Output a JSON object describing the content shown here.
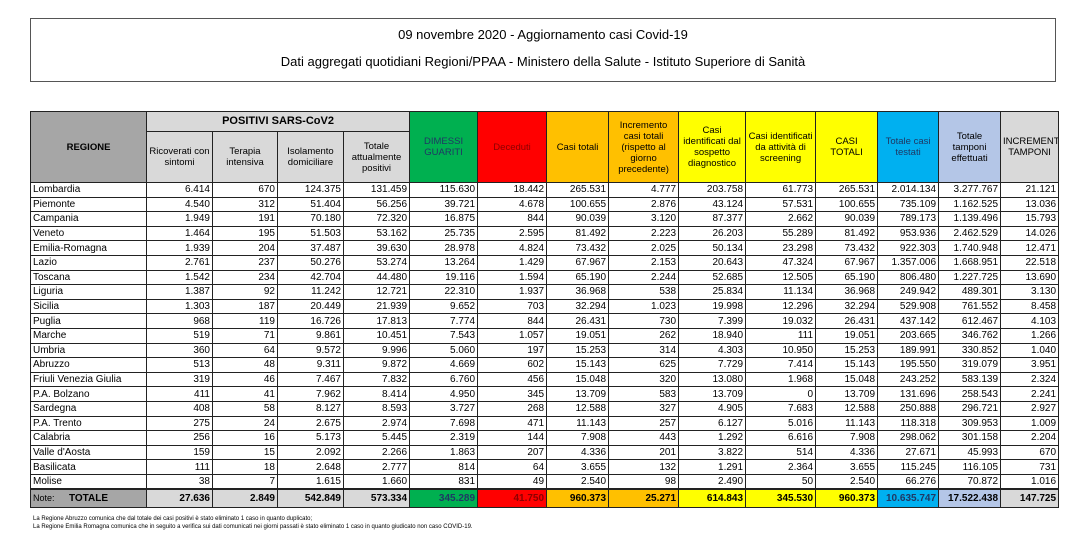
{
  "title": "09 novembre 2020 - Aggiornamento casi Covid-19",
  "subtitle": "Dati aggregati quotidiani Regioni/PPAA - Ministero della Salute - Istituto Superiore di Sanità",
  "headers": {
    "regione": "REGIONE",
    "positivi": "POSITIVI SARS-CoV2",
    "cols": [
      "Ricoverati con sintomi",
      "Terapia intensiva",
      "Isolamento domiciliare",
      "Totale attualmente positivi",
      "DIMESSI GUARITI",
      "Deceduti",
      "Casi totali",
      "Incremento casi totali (rispetto al giorno precedente)",
      "Casi identificati dal sospetto diagnostico",
      "Casi identificati da attività di screening",
      "CASI TOTALI",
      "Totale casi testati",
      "Totale tamponi effettuati",
      "INCREMENTO TAMPONI"
    ]
  },
  "colors": {
    "green": "#00b050",
    "red": "#ff0000",
    "orange": "#ffc000",
    "yellow": "#ffff00",
    "blue": "#00b0f0",
    "lightblue": "#b4c6e7",
    "gray": "#d9d9d9"
  },
  "rows": [
    [
      "Lombardia",
      "6.414",
      "670",
      "124.375",
      "131.459",
      "115.630",
      "18.442",
      "265.531",
      "4.777",
      "203.758",
      "61.773",
      "265.531",
      "2.014.134",
      "3.277.767",
      "21.121"
    ],
    [
      "Piemonte",
      "4.540",
      "312",
      "51.404",
      "56.256",
      "39.721",
      "4.678",
      "100.655",
      "2.876",
      "43.124",
      "57.531",
      "100.655",
      "735.109",
      "1.162.525",
      "13.036"
    ],
    [
      "Campania",
      "1.949",
      "191",
      "70.180",
      "72.320",
      "16.875",
      "844",
      "90.039",
      "3.120",
      "87.377",
      "2.662",
      "90.039",
      "789.173",
      "1.139.496",
      "15.793"
    ],
    [
      "Veneto",
      "1.464",
      "195",
      "51.503",
      "53.162",
      "25.735",
      "2.595",
      "81.492",
      "2.223",
      "26.203",
      "55.289",
      "81.492",
      "953.936",
      "2.462.529",
      "14.026"
    ],
    [
      "Emilia-Romagna",
      "1.939",
      "204",
      "37.487",
      "39.630",
      "28.978",
      "4.824",
      "73.432",
      "2.025",
      "50.134",
      "23.298",
      "73.432",
      "922.303",
      "1.740.948",
      "12.471"
    ],
    [
      "Lazio",
      "2.761",
      "237",
      "50.276",
      "53.274",
      "13.264",
      "1.429",
      "67.967",
      "2.153",
      "20.643",
      "47.324",
      "67.967",
      "1.357.006",
      "1.668.951",
      "22.518"
    ],
    [
      "Toscana",
      "1.542",
      "234",
      "42.704",
      "44.480",
      "19.116",
      "1.594",
      "65.190",
      "2.244",
      "52.685",
      "12.505",
      "65.190",
      "806.480",
      "1.227.725",
      "13.690"
    ],
    [
      "Liguria",
      "1.387",
      "92",
      "11.242",
      "12.721",
      "22.310",
      "1.937",
      "36.968",
      "538",
      "25.834",
      "11.134",
      "36.968",
      "249.942",
      "489.301",
      "3.130"
    ],
    [
      "Sicilia",
      "1.303",
      "187",
      "20.449",
      "21.939",
      "9.652",
      "703",
      "32.294",
      "1.023",
      "19.998",
      "12.296",
      "32.294",
      "529.908",
      "761.552",
      "8.458"
    ],
    [
      "Puglia",
      "968",
      "119",
      "16.726",
      "17.813",
      "7.774",
      "844",
      "26.431",
      "730",
      "7.399",
      "19.032",
      "26.431",
      "437.142",
      "612.467",
      "4.103"
    ],
    [
      "Marche",
      "519",
      "71",
      "9.861",
      "10.451",
      "7.543",
      "1.057",
      "19.051",
      "262",
      "18.940",
      "111",
      "19.051",
      "203.665",
      "346.762",
      "1.266"
    ],
    [
      "Umbria",
      "360",
      "64",
      "9.572",
      "9.996",
      "5.060",
      "197",
      "15.253",
      "314",
      "4.303",
      "10.950",
      "15.253",
      "189.991",
      "330.852",
      "1.040"
    ],
    [
      "Abruzzo",
      "513",
      "48",
      "9.311",
      "9.872",
      "4.669",
      "602",
      "15.143",
      "625",
      "7.729",
      "7.414",
      "15.143",
      "195.550",
      "319.079",
      "3.951"
    ],
    [
      "Friuli Venezia Giulia",
      "319",
      "46",
      "7.467",
      "7.832",
      "6.760",
      "456",
      "15.048",
      "320",
      "13.080",
      "1.968",
      "15.048",
      "243.252",
      "583.139",
      "2.324"
    ],
    [
      "P.A. Bolzano",
      "411",
      "41",
      "7.962",
      "8.414",
      "4.950",
      "345",
      "13.709",
      "583",
      "13.709",
      "0",
      "13.709",
      "131.696",
      "258.543",
      "2.241"
    ],
    [
      "Sardegna",
      "408",
      "58",
      "8.127",
      "8.593",
      "3.727",
      "268",
      "12.588",
      "327",
      "4.905",
      "7.683",
      "12.588",
      "250.888",
      "296.721",
      "2.927"
    ],
    [
      "P.A. Trento",
      "275",
      "24",
      "2.675",
      "2.974",
      "7.698",
      "471",
      "11.143",
      "257",
      "6.127",
      "5.016",
      "11.143",
      "118.318",
      "309.953",
      "1.009"
    ],
    [
      "Calabria",
      "256",
      "16",
      "5.173",
      "5.445",
      "2.319",
      "144",
      "7.908",
      "443",
      "1.292",
      "6.616",
      "7.908",
      "298.062",
      "301.158",
      "2.204"
    ],
    [
      "Valle d'Aosta",
      "159",
      "15",
      "2.092",
      "2.266",
      "1.863",
      "207",
      "4.336",
      "201",
      "3.822",
      "514",
      "4.336",
      "27.671",
      "45.993",
      "670"
    ],
    [
      "Basilicata",
      "111",
      "18",
      "2.648",
      "2.777",
      "814",
      "64",
      "3.655",
      "132",
      "1.291",
      "2.364",
      "3.655",
      "115.245",
      "116.105",
      "731"
    ],
    [
      "Molise",
      "38",
      "7",
      "1.615",
      "1.660",
      "831",
      "49",
      "2.540",
      "98",
      "2.490",
      "50",
      "2.540",
      "66.276",
      "70.872",
      "1.016"
    ]
  ],
  "total": [
    "TOTALE",
    "27.636",
    "2.849",
    "542.849",
    "573.334",
    "345.289",
    "41.750",
    "960.373",
    "25.271",
    "614.843",
    "345.530",
    "960.373",
    "10.635.747",
    "17.522.438",
    "147.725"
  ],
  "notes": {
    "label": "Note:",
    "lines": [
      "La Regione Abruzzo comunica che dal totale dei casi positivi è stato eliminato 1 caso in quanto duplicato;",
      "La Regione Emilia Romagna comunica che in seguito a verifica sui dati comunicati nei giorni passati è stato eliminato 1 caso in quanto giudicato non caso COVID-19."
    ]
  }
}
